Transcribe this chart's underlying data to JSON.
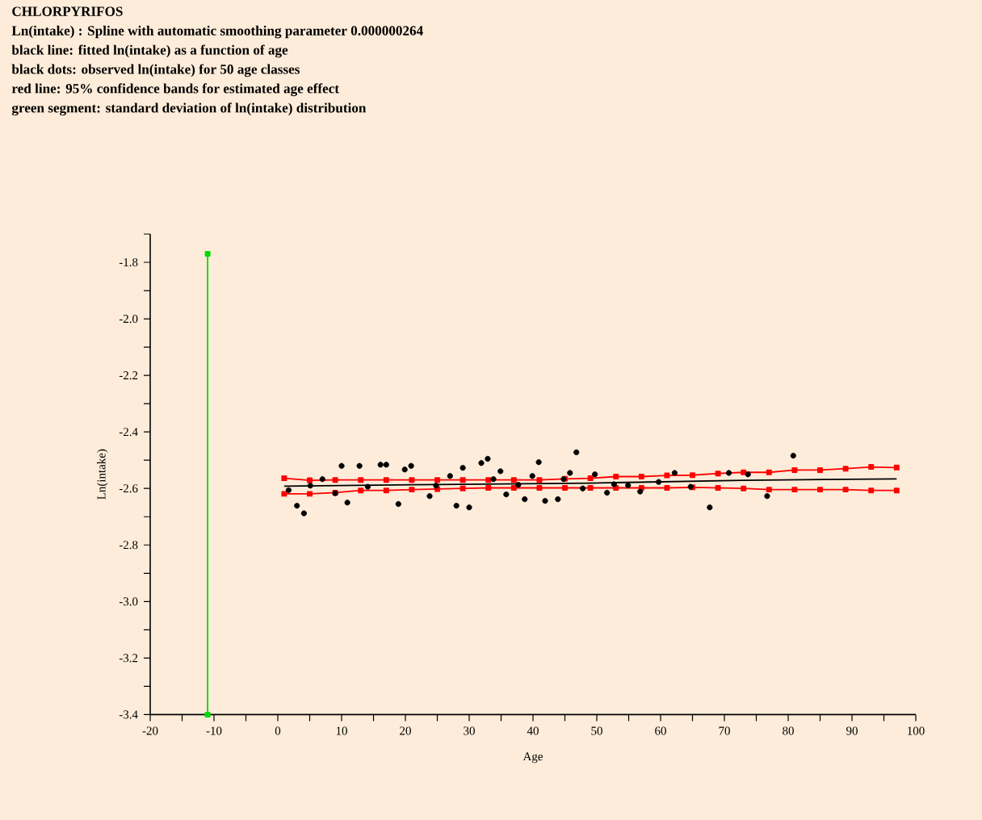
{
  "chart_data": {
    "type": "scatter",
    "title": "CHLORPYRIFOS",
    "subtitle": "Ln(intake) : Spline with automatic smoothing parameter 0.000000264",
    "annotations": [
      "black line: fitted ln(intake) as a function of age",
      "black dots: observed ln(intake) for 50 age classes",
      "red line: 95% confidence bands for estimated age effect",
      "green segment: standard deviation of ln(intake) distribution"
    ],
    "xlabel": "Age",
    "ylabel": "Ln(intake)",
    "xlim": [
      -20,
      100
    ],
    "ylim": [
      -3.4,
      -1.7
    ],
    "xticks": [
      -20,
      {
        "value": -15,
        "label": null
      },
      -10,
      {
        "value": -5,
        "label": null
      },
      0,
      {
        "value": 5,
        "label": null
      },
      10,
      {
        "value": 15,
        "label": null
      },
      20,
      {
        "value": 25,
        "label": null
      },
      30,
      {
        "value": 35,
        "label": null
      },
      40,
      {
        "value": 45,
        "label": null
      },
      50,
      {
        "value": 55,
        "label": null
      },
      60,
      {
        "value": 65,
        "label": null
      },
      70,
      {
        "value": 75,
        "label": null
      },
      80,
      {
        "value": 85,
        "label": null
      },
      90,
      {
        "value": 95,
        "label": null
      },
      100
    ],
    "yticks": [
      -3.4,
      {
        "value": -3.3,
        "label": null
      },
      -3.2,
      {
        "value": -3.1,
        "label": null
      },
      {
        "value": -3.0,
        "label": "-3.0"
      },
      {
        "value": -2.9,
        "label": null
      },
      -2.8,
      {
        "value": -2.7,
        "label": null
      },
      -2.6,
      {
        "value": -2.5,
        "label": null
      },
      -2.4,
      {
        "value": -2.3,
        "label": null
      },
      -2.2,
      {
        "value": -2.1,
        "label": null
      },
      {
        "value": -2.0,
        "label": "-2.0"
      },
      {
        "value": -1.9,
        "label": null
      },
      -1.8,
      {
        "value": -1.7,
        "label": null
      }
    ],
    "series": [
      {
        "type": "line",
        "color": "#00dd00",
        "marker": "square",
        "x": [
          -11,
          -11
        ],
        "values": [
          -1.77,
          -3.4
        ]
      },
      {
        "type": "line",
        "color": "#ff0000",
        "marker": "square",
        "x": [
          1,
          5,
          9,
          13,
          17,
          21,
          25,
          29,
          33,
          37,
          41,
          45,
          49,
          53,
          57,
          61,
          65,
          69,
          73,
          77,
          81,
          85,
          89,
          93,
          97
        ],
        "values": [
          -2.564,
          -2.571,
          -2.57,
          -2.57,
          -2.57,
          -2.57,
          -2.57,
          -2.57,
          -2.57,
          -2.57,
          -2.57,
          -2.566,
          -2.564,
          -2.558,
          -2.558,
          -2.554,
          -2.553,
          -2.547,
          -2.543,
          -2.543,
          -2.535,
          -2.535,
          -2.53,
          -2.524,
          -2.526
        ]
      },
      {
        "type": "line",
        "color": "#ff0000",
        "marker": "square",
        "x": [
          1,
          5,
          9,
          13,
          17,
          21,
          25,
          29,
          33,
          37,
          41,
          45,
          49,
          53,
          57,
          61,
          65,
          69,
          73,
          77,
          81,
          85,
          89,
          93,
          97
        ],
        "values": [
          -2.619,
          -2.619,
          -2.615,
          -2.607,
          -2.607,
          -2.604,
          -2.602,
          -2.6,
          -2.598,
          -2.598,
          -2.598,
          -2.598,
          -2.598,
          -2.598,
          -2.598,
          -2.598,
          -2.596,
          -2.598,
          -2.6,
          -2.604,
          -2.604,
          -2.604,
          -2.604,
          -2.607,
          -2.607
        ]
      },
      {
        "type": "line",
        "color": "#000000",
        "marker": "none",
        "x": [
          1,
          25,
          49,
          73,
          97
        ],
        "values": [
          -2.592,
          -2.586,
          -2.581,
          -2.571,
          -2.566
        ]
      },
      {
        "type": "scatter",
        "color": "#000000",
        "marker": "circle",
        "x": [
          1.7,
          3.0,
          4.1,
          5.1,
          7.0,
          9.0,
          10.0,
          10.9,
          12.8,
          14.1,
          16.1,
          17.0,
          18.9,
          19.9,
          20.9,
          23.8,
          24.8,
          27.0,
          28.0,
          29.0,
          30.0,
          31.9,
          32.9,
          33.8,
          34.9,
          35.8,
          37.7,
          38.7,
          39.9,
          40.9,
          41.9,
          43.9,
          44.8,
          45.8,
          46.8,
          47.8,
          49.7,
          51.6,
          52.7,
          54.9,
          56.8,
          59.7,
          62.2,
          64.7,
          67.7,
          70.7,
          73.7,
          76.7,
          80.8
        ],
        "values": [
          -2.606,
          -2.661,
          -2.688,
          -2.59,
          -2.567,
          -2.617,
          -2.52,
          -2.65,
          -2.52,
          -2.594,
          -2.516,
          -2.516,
          -2.655,
          -2.533,
          -2.52,
          -2.627,
          -2.59,
          -2.556,
          -2.661,
          -2.527,
          -2.667,
          -2.51,
          -2.495,
          -2.567,
          -2.539,
          -2.621,
          -2.587,
          -2.638,
          -2.556,
          -2.507,
          -2.644,
          -2.638,
          -2.567,
          -2.545,
          -2.472,
          -2.6,
          -2.55,
          -2.615,
          -2.585,
          -2.589,
          -2.611,
          -2.577,
          -2.545,
          -2.594,
          -2.667,
          -2.545,
          -2.55,
          -2.627,
          -2.484
        ]
      }
    ]
  }
}
